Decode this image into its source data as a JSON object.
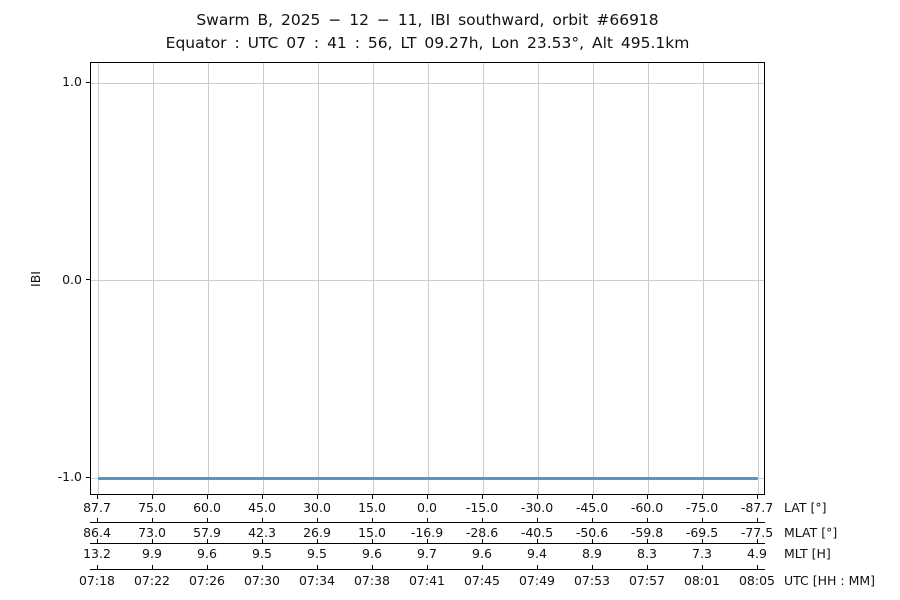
{
  "chart_data": {
    "type": "line",
    "title": "Swarm B, 2025 − 12 − 11, IBI southward, orbit #66918",
    "subtitle": "Equator : UTC 07 : 41 : 56, LT 09.27h, Lon 23.53°, Alt 495.1km",
    "ylabel": "IBI",
    "ylim": [
      -1.1,
      1.1
    ],
    "yticks": [
      1.0,
      0.0,
      -1.0
    ],
    "ytick_labels": [
      "1.0",
      "0.0",
      "-1.0"
    ],
    "grid": true,
    "legend": "none",
    "series": [
      {
        "name": "IBI",
        "color": "#4f9bc8",
        "values": [
          -1.0,
          -1.0,
          -1.0,
          -1.0,
          -1.0,
          -1.0,
          -1.0,
          -1.0,
          -1.0,
          -1.0,
          -1.0,
          -1.0,
          -1.0
        ]
      }
    ],
    "x_axis_rows": [
      {
        "label": "LAT [°]",
        "values": [
          "87.7",
          "75.0",
          "60.0",
          "45.0",
          "30.0",
          "15.0",
          "0.0",
          "-15.0",
          "-30.0",
          "-45.0",
          "-60.0",
          "-75.0",
          "-87.7"
        ]
      },
      {
        "label": "MLAT [°]",
        "values": [
          "86.4",
          "73.0",
          "57.9",
          "42.3",
          "26.9",
          "15.0",
          "-16.9",
          "-28.6",
          "-40.5",
          "-50.6",
          "-59.8",
          "-69.5",
          "-77.5"
        ]
      },
      {
        "label": "MLT [H]",
        "values": [
          "13.2",
          "9.9",
          "9.6",
          "9.5",
          "9.5",
          "9.6",
          "9.7",
          "9.6",
          "9.4",
          "8.9",
          "8.3",
          "7.3",
          "4.9"
        ]
      },
      {
        "label": "UTC [HH : MM]",
        "values": [
          "07:18",
          "07:22",
          "07:26",
          "07:30",
          "07:34",
          "07:38",
          "07:41",
          "07:45",
          "07:49",
          "07:53",
          "07:57",
          "08:01",
          "08:05"
        ]
      }
    ]
  }
}
